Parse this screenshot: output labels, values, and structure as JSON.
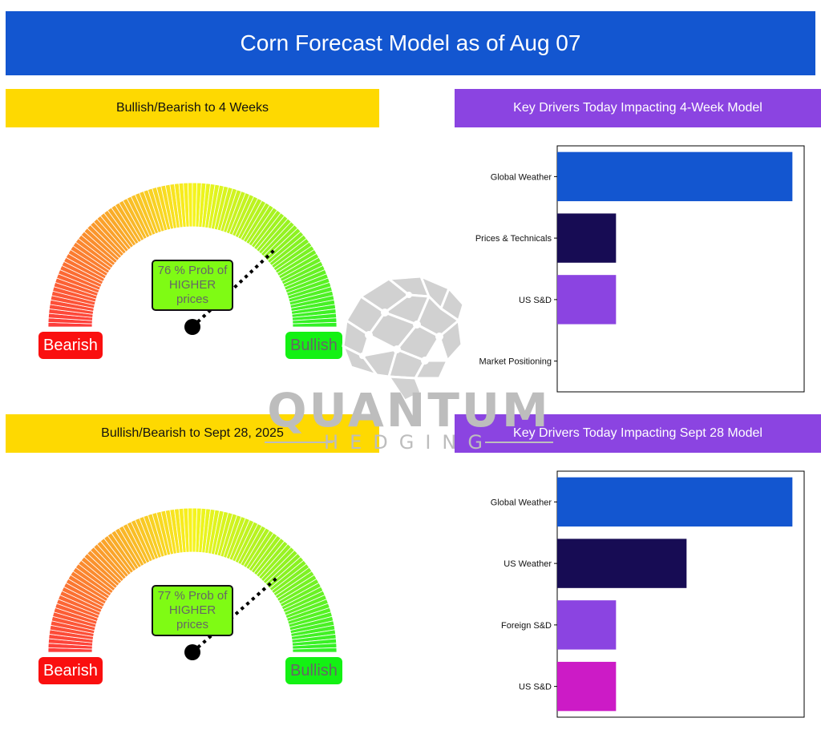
{
  "title": "Corn Forecast Model as of Aug 07",
  "sections": {
    "gauge_4w_header": "Bullish/Bearish to 4 Weeks",
    "drivers_4w_header": "Key Drivers Today Impacting 4-Week Model",
    "gauge_sept_header": "Bullish/Bearish to Sept 28, 2025",
    "drivers_sept_header": "Key Drivers Today Impacting Sept 28 Model"
  },
  "gauges": {
    "four_week": {
      "probability_pct": 76,
      "label_line1": "76 % Prob of",
      "label_line2": "HIGHER",
      "label_line3": "prices",
      "bearish_label": "Bearish",
      "bullish_label": "Bullish"
    },
    "sept": {
      "probability_pct": 77,
      "label_line1": "77 % Prob of",
      "label_line2": "HIGHER",
      "label_line3": "prices",
      "bearish_label": "Bearish",
      "bullish_label": "Bullish"
    }
  },
  "chart_data": [
    {
      "type": "bar",
      "orientation": "horizontal",
      "categories": [
        "Global Weather",
        "Prices & Technicals",
        "US S&D",
        "Market Positioning"
      ],
      "values": [
        100,
        25,
        25,
        0
      ],
      "colors": [
        "#1356d0",
        "#170c54",
        "#8b44e1",
        "#cc1bc6"
      ],
      "xlim": [
        0,
        105
      ],
      "axis_labels_shown": false
    },
    {
      "type": "bar",
      "orientation": "horizontal",
      "categories": [
        "Global Weather",
        "US Weather",
        "Foreign S&D",
        "US S&D"
      ],
      "values": [
        100,
        55,
        25,
        25
      ],
      "colors": [
        "#1356d0",
        "#170c54",
        "#8b44e1",
        "#cc1bc6"
      ],
      "xlim": [
        0,
        105
      ],
      "axis_labels_shown": false
    }
  ],
  "logo": {
    "word1": "QUANTUM",
    "word2": "HEDGING"
  },
  "colors": {
    "title_bar": "#1356d0",
    "yellow_bar": "#fed901",
    "purple_bar": "#8b44e1",
    "gauge_red": "#fd3b3b",
    "gauge_yellow": "#f7f41e",
    "gauge_green": "#30f126",
    "prob_box": "#7ffb14"
  }
}
